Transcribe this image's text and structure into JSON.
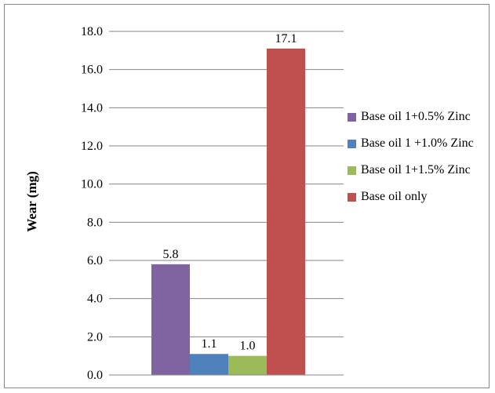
{
  "chart_data": {
    "type": "bar",
    "title": "",
    "xlabel": "",
    "ylabel": "Wear (mg)",
    "ylim": [
      0,
      18
    ],
    "yticks": [
      "0.0",
      "2.0",
      "4.0",
      "6.0",
      "8.0",
      "10.0",
      "12.0",
      "14.0",
      "16.0",
      "18.0"
    ],
    "grid": true,
    "legend_position": "right",
    "series": [
      {
        "name": "Base oil 1+0.5% Zinc",
        "values": [
          5.8
        ],
        "label": "5.8",
        "color": "#8064A2"
      },
      {
        "name": "Base oil 1 +1.0% Zinc",
        "values": [
          1.1
        ],
        "label": "1.1",
        "color": "#4F81BD"
      },
      {
        "name": "Base oil 1+1.5% Zinc",
        "values": [
          1.0
        ],
        "label": "1.0",
        "color": "#9BBB59"
      },
      {
        "name": "Base oil only",
        "values": [
          17.1
        ],
        "label": "17.1",
        "color": "#C0504D"
      }
    ]
  }
}
